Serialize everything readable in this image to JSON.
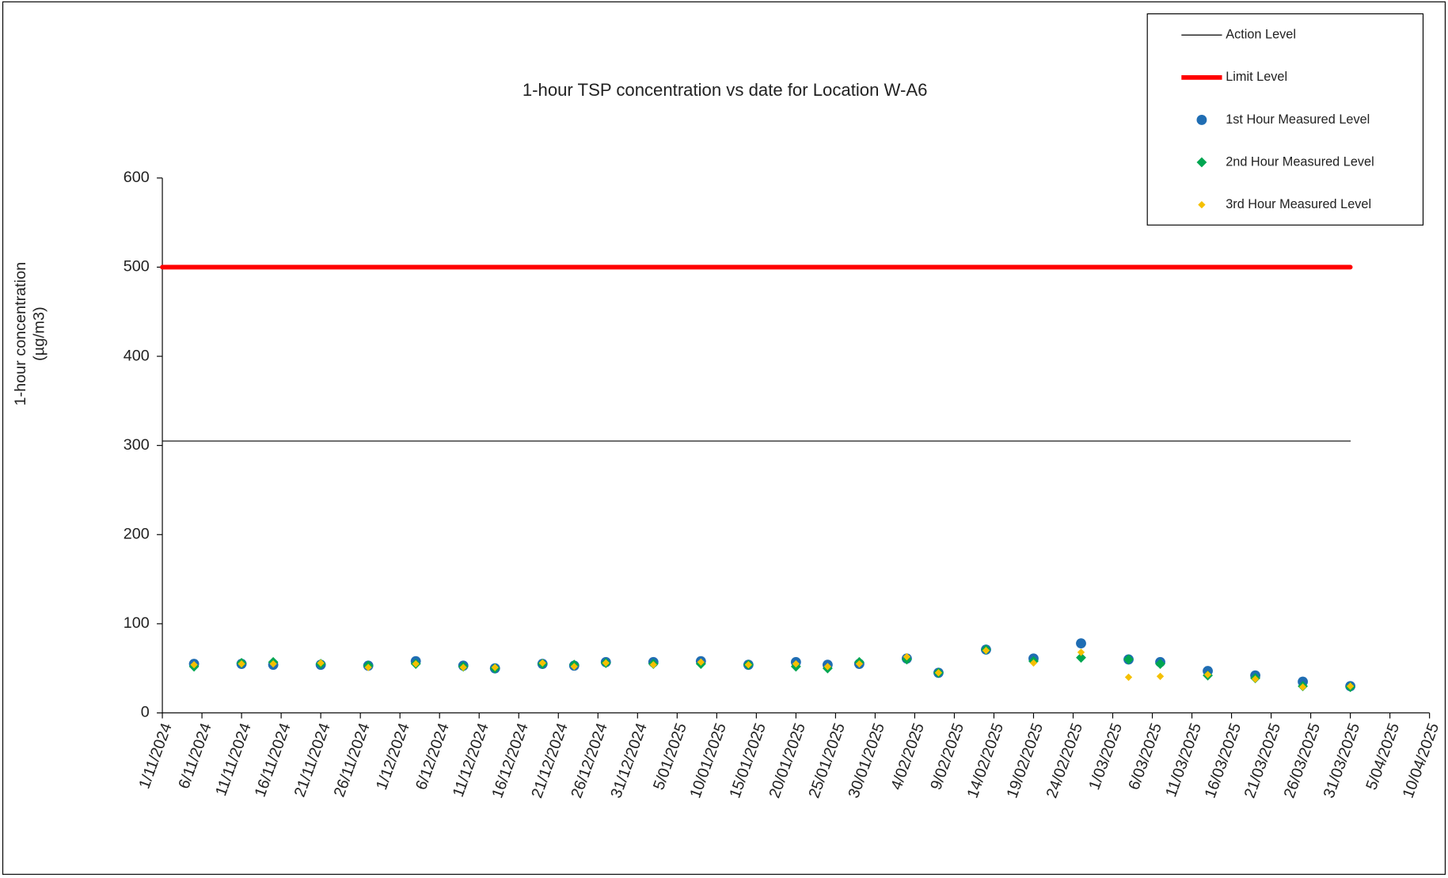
{
  "chart_data": {
    "type": "scatter",
    "title": "1-hour TSP concentration vs date for Location  W-A6",
    "y_label": [
      "1-hour concentration",
      "(µg/m3)"
    ],
    "x": [
      "2024-11-05",
      "2024-11-11",
      "2024-11-15",
      "2024-11-21",
      "2024-11-27",
      "2024-12-03",
      "2024-12-09",
      "2024-12-13",
      "2024-12-19",
      "2024-12-23",
      "2024-12-27",
      "2025-01-02",
      "2025-01-08",
      "2025-01-14",
      "2025-01-20",
      "2025-01-24",
      "2025-01-28",
      "2025-02-03",
      "2025-02-07",
      "2025-02-13",
      "2025-02-19",
      "2025-02-25",
      "2025-03-03",
      "2025-03-07",
      "2025-03-13",
      "2025-03-19",
      "2025-03-25",
      "2025-03-31"
    ],
    "series": [
      {
        "name": "Action Level",
        "kind": "line",
        "color": "#000000",
        "x": [
          "2024-11-01",
          "2025-03-31"
        ],
        "values": [
          305,
          305
        ]
      },
      {
        "name": "Limit Level",
        "kind": "line",
        "color": "#ff0000",
        "x": [
          "2024-11-01",
          "2025-03-31"
        ],
        "values": [
          500,
          500
        ]
      },
      {
        "name": "1st Hour Measured Level",
        "kind": "scatter",
        "marker": "circle",
        "color": "#1f6db3",
        "values": [
          55,
          55,
          54,
          54,
          53,
          58,
          53,
          50,
          55,
          53,
          57,
          57,
          58,
          54,
          57,
          54,
          55,
          61,
          45,
          71,
          61,
          78,
          60,
          57,
          47,
          42,
          35,
          30
        ]
      },
      {
        "name": "2nd Hour Measured Level",
        "kind": "scatter",
        "marker": "diamond",
        "color": "#00a651",
        "values": [
          52,
          56,
          57,
          55,
          53,
          55,
          52,
          50,
          55,
          54,
          56,
          55,
          55,
          54,
          52,
          50,
          57,
          60,
          45,
          71,
          58,
          62,
          60,
          55,
          42,
          39,
          30,
          29
        ]
      },
      {
        "name": "3rd Hour Measured Level",
        "kind": "scatter",
        "marker": "diamond-small",
        "color": "#f5c000",
        "values": [
          54,
          55,
          55,
          56,
          51,
          55,
          51,
          51,
          56,
          52,
          56,
          54,
          57,
          54,
          55,
          52,
          55,
          63,
          45,
          70,
          56,
          68,
          40,
          41,
          43,
          38,
          29,
          30
        ]
      }
    ],
    "xlim": [
      "2024-11-01",
      "2025-04-10"
    ],
    "xticks": [
      {
        "value": "2024-11-01",
        "label": "1/11/2024"
      },
      {
        "value": "2024-11-06",
        "label": "6/11/2024"
      },
      {
        "value": "2024-11-11",
        "label": "11/11/2024"
      },
      {
        "value": "2024-11-16",
        "label": "16/11/2024"
      },
      {
        "value": "2024-11-21",
        "label": "21/11/2024"
      },
      {
        "value": "2024-11-26",
        "label": "26/11/2024"
      },
      {
        "value": "2024-12-01",
        "label": "1/12/2024"
      },
      {
        "value": "2024-12-06",
        "label": "6/12/2024"
      },
      {
        "value": "2024-12-11",
        "label": "11/12/2024"
      },
      {
        "value": "2024-12-16",
        "label": "16/12/2024"
      },
      {
        "value": "2024-12-21",
        "label": "21/12/2024"
      },
      {
        "value": "2024-12-26",
        "label": "26/12/2024"
      },
      {
        "value": "2024-12-31",
        "label": "31/12/2024"
      },
      {
        "value": "2025-01-05",
        "label": "5/01/2025"
      },
      {
        "value": "2025-01-10",
        "label": "10/01/2025"
      },
      {
        "value": "2025-01-15",
        "label": "15/01/2025"
      },
      {
        "value": "2025-01-20",
        "label": "20/01/2025"
      },
      {
        "value": "2025-01-25",
        "label": "25/01/2025"
      },
      {
        "value": "2025-01-30",
        "label": "30/01/2025"
      },
      {
        "value": "2025-02-04",
        "label": "4/02/2025"
      },
      {
        "value": "2025-02-09",
        "label": "9/02/2025"
      },
      {
        "value": "2025-02-14",
        "label": "14/02/2025"
      },
      {
        "value": "2025-02-19",
        "label": "19/02/2025"
      },
      {
        "value": "2025-02-24",
        "label": "24/02/2025"
      },
      {
        "value": "2025-03-01",
        "label": "1/03/2025"
      },
      {
        "value": "2025-03-06",
        "label": "6/03/2025"
      },
      {
        "value": "2025-03-11",
        "label": "11/03/2025"
      },
      {
        "value": "2025-03-16",
        "label": "16/03/2025"
      },
      {
        "value": "2025-03-21",
        "label": "21/03/2025"
      },
      {
        "value": "2025-03-26",
        "label": "26/03/2025"
      },
      {
        "value": "2025-03-31",
        "label": "31/03/2025"
      },
      {
        "value": "2025-04-05",
        "label": "5/04/2025"
      },
      {
        "value": "2025-04-10",
        "label": "10/04/2025"
      }
    ],
    "ylim": [
      0,
      600
    ],
    "yticks": [
      0,
      100,
      200,
      300,
      400,
      500,
      600
    ],
    "grid": false,
    "legend": "top-right"
  }
}
